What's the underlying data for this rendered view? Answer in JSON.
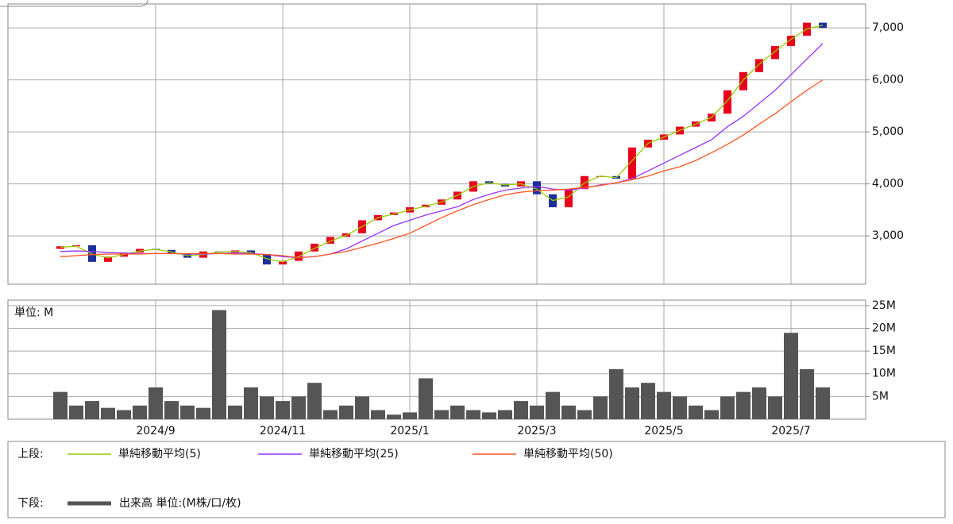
{
  "chart_data": [
    {
      "type": "candlestick",
      "open": [
        2750,
        2800,
        2820,
        2500,
        2600,
        2680,
        2750,
        2730,
        2650,
        2580,
        2700,
        2680,
        2720,
        2650,
        2450,
        2520,
        2700,
        2850,
        2980,
        3050,
        3300,
        3400,
        3450,
        3550,
        3600,
        3700,
        3850,
        4050,
        4000,
        3950,
        4050,
        3800,
        3550,
        3900,
        4150,
        4150,
        4100,
        4700,
        4850,
        4950,
        5100,
        5200,
        5350,
        5800,
        6150,
        6400,
        6650,
        6850,
        7100
      ],
      "close": [
        2800,
        2820,
        2500,
        2600,
        2680,
        2750,
        2730,
        2650,
        2580,
        2700,
        2680,
        2720,
        2650,
        2450,
        2520,
        2700,
        2850,
        2980,
        3050,
        3300,
        3400,
        3450,
        3550,
        3600,
        3700,
        3850,
        4050,
        4000,
        3950,
        4050,
        3800,
        3550,
        3900,
        4150,
        4150,
        4100,
        4700,
        4850,
        4950,
        5100,
        5200,
        5350,
        5800,
        6150,
        6400,
        6650,
        6850,
        7100,
        7000
      ],
      "up_color": "#e8001c",
      "down_color": "#1d2f9b",
      "series": [
        {
          "name": "単純移動平均(5)",
          "color": "#99cc00",
          "values": [
            2780,
            2800,
            2650,
            2580,
            2640,
            2710,
            2740,
            2690,
            2620,
            2640,
            2690,
            2700,
            2680,
            2560,
            2500,
            2600,
            2760,
            2900,
            3010,
            3180,
            3350,
            3420,
            3500,
            3570,
            3650,
            3780,
            3950,
            4020,
            3980,
            4000,
            3900,
            3680,
            3750,
            4020,
            4150,
            4120,
            4450,
            4780,
            4900,
            5030,
            5150,
            5280,
            5600,
            6000,
            6300,
            6550,
            6780,
            6980,
            7050
          ]
        },
        {
          "name": "単純移動平均(25)",
          "color": "#9933ff",
          "values": [
            2700,
            2710,
            2700,
            2680,
            2670,
            2660,
            2660,
            2660,
            2650,
            2650,
            2660,
            2670,
            2660,
            2640,
            2600,
            2580,
            2600,
            2650,
            2750,
            2900,
            3050,
            3200,
            3300,
            3400,
            3480,
            3560,
            3700,
            3800,
            3880,
            3920,
            3950,
            3900,
            3880,
            3920,
            3980,
            4020,
            4100,
            4250,
            4400,
            4550,
            4700,
            4850,
            5100,
            5300,
            5550,
            5800,
            6100,
            6400,
            6700
          ]
        },
        {
          "name": "単純移動平均(50)",
          "color": "#ff5522",
          "values": [
            2600,
            2620,
            2640,
            2650,
            2650,
            2650,
            2660,
            2660,
            2660,
            2660,
            2660,
            2650,
            2650,
            2640,
            2620,
            2580,
            2600,
            2650,
            2700,
            2780,
            2860,
            2950,
            3050,
            3200,
            3350,
            3480,
            3600,
            3700,
            3790,
            3840,
            3870,
            3880,
            3900,
            3930,
            3970,
            4020,
            4080,
            4150,
            4250,
            4330,
            4450,
            4600,
            4760,
            4940,
            5150,
            5350,
            5580,
            5800,
            6000
          ]
        }
      ],
      "ylim": [
        2070,
        7460
      ],
      "yticks": [
        {
          "value": 3000,
          "label": "3,000"
        },
        {
          "value": 4000,
          "label": "4,000"
        },
        {
          "value": 5000,
          "label": "5,000"
        },
        {
          "value": 6000,
          "label": "6,000"
        },
        {
          "value": 7000,
          "label": "7,000"
        }
      ],
      "grid": true,
      "legend_label": "上段:"
    },
    {
      "type": "bar",
      "unit_label": "単位: M",
      "categories": [
        null,
        null,
        null,
        null,
        null,
        null,
        "2024/9",
        null,
        null,
        null,
        null,
        null,
        null,
        null,
        "2024/11",
        null,
        null,
        null,
        null,
        null,
        null,
        null,
        "2025/1",
        null,
        null,
        null,
        null,
        null,
        null,
        null,
        "2025/3",
        null,
        null,
        null,
        null,
        null,
        null,
        null,
        "2025/5",
        null,
        null,
        null,
        null,
        null,
        null,
        null,
        "2025/7",
        null,
        null
      ],
      "series": [
        {
          "name": "出来高 単位:(M株/口/枚)",
          "color": "#555555",
          "values": [
            6,
            3,
            4,
            2.5,
            2,
            3,
            7,
            4,
            3,
            2.5,
            24,
            3,
            7,
            5,
            4,
            5,
            8,
            2,
            3,
            5,
            2,
            1,
            1.5,
            9,
            2,
            3,
            2,
            1.5,
            2,
            4,
            3,
            6,
            3,
            2,
            5,
            11,
            7,
            8,
            6,
            5,
            3,
            2,
            5,
            6,
            7,
            5,
            19,
            11,
            7
          ]
        }
      ],
      "ylim": [
        0,
        26.2
      ],
      "yticks": [
        {
          "value": 5,
          "label": "5M"
        },
        {
          "value": 10,
          "label": "10M"
        },
        {
          "value": 15,
          "label": "15M"
        },
        {
          "value": 20,
          "label": "20M"
        },
        {
          "value": 25,
          "label": "25M"
        }
      ],
      "grid": true,
      "legend_label": "下段:"
    }
  ]
}
